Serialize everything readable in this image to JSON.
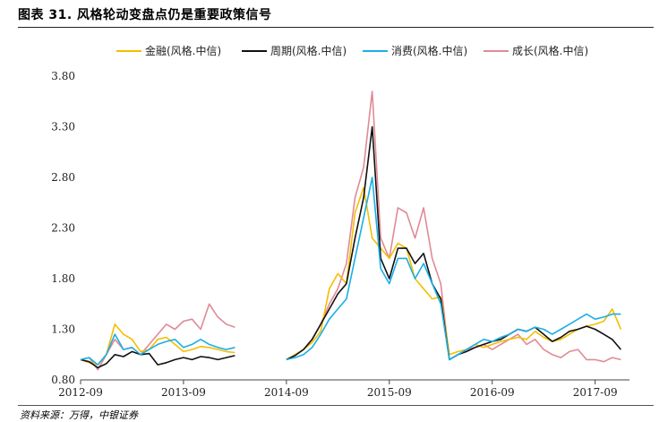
{
  "title": "图表 31. 风格轮动变盘点仍是重要政策信号",
  "source": "资料来源：万得，中银证券",
  "chart_data": {
    "type": "line",
    "ylim": [
      0.8,
      3.8
    ],
    "yticks": [
      "3.80",
      "3.30",
      "2.80",
      "2.30",
      "1.80",
      "1.30",
      "0.80"
    ],
    "ytick_values": [
      3.8,
      3.3,
      2.8,
      2.3,
      1.8,
      1.3,
      0.8
    ],
    "xticks": [
      "2012-09",
      "2013-09",
      "2014-09",
      "2015-09",
      "2016-09",
      "2017-09"
    ],
    "xtick_pos": [
      0,
      12,
      24,
      36,
      48,
      60
    ],
    "xlim": [
      0,
      64
    ],
    "legend_position": "top",
    "grid": false,
    "series": [
      {
        "name": "金融(风格.中信)",
        "color": "#F5BE00",
        "x": [
          0,
          1,
          2,
          3,
          4,
          5,
          6,
          7,
          8,
          9,
          10,
          11,
          12,
          13,
          14,
          15,
          16,
          17,
          18,
          24,
          25,
          26,
          27,
          28,
          29,
          30,
          31,
          32,
          33,
          34,
          35,
          36,
          37,
          38,
          39,
          40,
          41,
          42,
          43,
          44,
          45,
          46,
          47,
          48,
          49,
          50,
          51,
          52,
          53,
          54,
          55,
          56,
          57,
          58,
          59,
          60,
          61,
          62,
          63
        ],
        "y": [
          1.0,
          0.97,
          0.95,
          1.05,
          1.35,
          1.25,
          1.2,
          1.08,
          1.1,
          1.2,
          1.22,
          1.15,
          1.08,
          1.1,
          1.13,
          1.12,
          1.1,
          1.08,
          1.07,
          1.0,
          1.05,
          1.1,
          1.17,
          1.28,
          1.7,
          1.85,
          1.75,
          2.45,
          2.7,
          2.2,
          2.1,
          2.0,
          2.15,
          2.1,
          1.8,
          1.7,
          1.6,
          1.62,
          1.05,
          1.08,
          1.1,
          1.15,
          1.12,
          1.15,
          1.18,
          1.2,
          1.22,
          1.2,
          1.28,
          1.22,
          1.18,
          1.2,
          1.25,
          1.3,
          1.33,
          1.35,
          1.38,
          1.5,
          1.3
        ]
      },
      {
        "name": "周期(风格.中信)",
        "color": "#111111",
        "x": [
          0,
          1,
          2,
          3,
          4,
          5,
          6,
          7,
          8,
          9,
          10,
          11,
          12,
          13,
          14,
          15,
          16,
          17,
          18,
          24,
          25,
          26,
          27,
          28,
          29,
          30,
          31,
          32,
          33,
          34,
          35,
          36,
          37,
          38,
          39,
          40,
          41,
          42,
          43,
          44,
          45,
          46,
          47,
          48,
          49,
          50,
          51,
          52,
          53,
          54,
          55,
          56,
          57,
          58,
          59,
          60,
          61,
          62,
          63
        ],
        "y": [
          1.0,
          0.98,
          0.92,
          0.96,
          1.05,
          1.03,
          1.08,
          1.05,
          1.06,
          0.95,
          0.97,
          1.0,
          1.02,
          1.0,
          1.03,
          1.02,
          1.0,
          1.02,
          1.04,
          1.0,
          1.04,
          1.1,
          1.2,
          1.35,
          1.5,
          1.65,
          1.75,
          2.2,
          2.6,
          3.3,
          2.0,
          1.8,
          2.1,
          2.1,
          1.95,
          2.05,
          1.75,
          1.6,
          1.0,
          1.05,
          1.08,
          1.12,
          1.15,
          1.18,
          1.2,
          1.25,
          1.3,
          1.28,
          1.32,
          1.25,
          1.18,
          1.22,
          1.28,
          1.3,
          1.33,
          1.3,
          1.25,
          1.2,
          1.1
        ]
      },
      {
        "name": "消费(风格.中信)",
        "color": "#1AAFE6",
        "x": [
          0,
          1,
          2,
          3,
          4,
          5,
          6,
          7,
          8,
          9,
          10,
          11,
          12,
          13,
          14,
          15,
          16,
          17,
          18,
          24,
          25,
          26,
          27,
          28,
          29,
          30,
          31,
          32,
          33,
          34,
          35,
          36,
          37,
          38,
          39,
          40,
          41,
          42,
          43,
          44,
          45,
          46,
          47,
          48,
          49,
          50,
          51,
          52,
          53,
          54,
          55,
          56,
          57,
          58,
          59,
          60,
          61,
          62,
          63
        ],
        "y": [
          1.0,
          1.02,
          0.95,
          1.05,
          1.25,
          1.1,
          1.12,
          1.05,
          1.1,
          1.15,
          1.18,
          1.2,
          1.12,
          1.15,
          1.2,
          1.15,
          1.12,
          1.1,
          1.12,
          1.0,
          1.02,
          1.05,
          1.12,
          1.25,
          1.4,
          1.5,
          1.6,
          2.0,
          2.4,
          2.8,
          1.9,
          1.75,
          2.0,
          2.0,
          1.8,
          1.95,
          1.75,
          1.55,
          1.0,
          1.05,
          1.1,
          1.15,
          1.2,
          1.18,
          1.22,
          1.25,
          1.3,
          1.28,
          1.32,
          1.3,
          1.25,
          1.3,
          1.35,
          1.4,
          1.45,
          1.4,
          1.42,
          1.45,
          1.45
        ]
      },
      {
        "name": "成长(风格.中信)",
        "color": "#E08A96",
        "x": [
          0,
          1,
          2,
          3,
          4,
          5,
          6,
          7,
          8,
          9,
          10,
          11,
          12,
          13,
          14,
          15,
          16,
          17,
          18,
          24,
          25,
          26,
          27,
          28,
          29,
          30,
          31,
          32,
          33,
          34,
          35,
          36,
          37,
          38,
          39,
          40,
          41,
          42,
          43,
          44,
          45,
          46,
          47,
          48,
          49,
          50,
          51,
          52,
          53,
          54,
          55,
          56,
          57,
          58,
          59,
          60,
          61,
          62,
          63
        ],
        "y": [
          1.0,
          1.02,
          0.9,
          1.05,
          1.2,
          1.1,
          1.12,
          1.05,
          1.15,
          1.25,
          1.35,
          1.3,
          1.38,
          1.4,
          1.3,
          1.55,
          1.42,
          1.35,
          1.32,
          1.0,
          1.05,
          1.1,
          1.2,
          1.35,
          1.55,
          1.7,
          1.95,
          2.6,
          2.9,
          3.65,
          2.2,
          2.0,
          2.5,
          2.45,
          2.2,
          2.5,
          2.0,
          1.75,
          1.0,
          1.05,
          1.1,
          1.12,
          1.15,
          1.1,
          1.15,
          1.2,
          1.25,
          1.15,
          1.2,
          1.1,
          1.05,
          1.02,
          1.08,
          1.1,
          1.0,
          1.0,
          0.98,
          1.02,
          1.0
        ]
      }
    ]
  }
}
